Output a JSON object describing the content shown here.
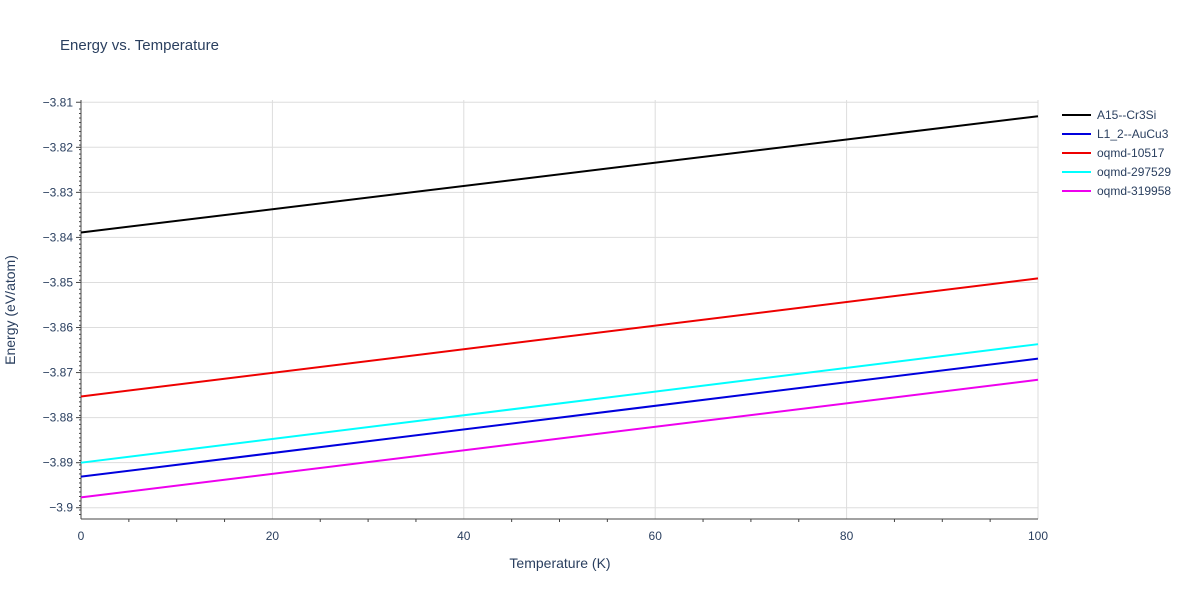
{
  "chart_data": {
    "type": "line",
    "title": "Energy vs. Temperature",
    "xlabel": "Temperature (K)",
    "ylabel": "Energy (eV/atom)",
    "xlim": [
      0,
      100
    ],
    "ylim": [
      -3.9025,
      -3.8095
    ],
    "x_ticks": [
      0,
      20,
      40,
      60,
      80,
      100
    ],
    "x_tick_labels": [
      "0",
      "20",
      "40",
      "60",
      "80",
      "100"
    ],
    "y_ticks": [
      -3.9,
      -3.89,
      -3.88,
      -3.87,
      -3.86,
      -3.85,
      -3.84,
      -3.83,
      -3.82,
      -3.81
    ],
    "y_tick_labels": [
      "−3.9",
      "−3.89",
      "−3.88",
      "−3.87",
      "−3.86",
      "−3.85",
      "−3.84",
      "−3.83",
      "−3.82",
      "−3.81"
    ],
    "grid": true,
    "legend_position": "top-right",
    "series": [
      {
        "name": "A15--Cr3Si",
        "color": "#000000",
        "x": [
          0,
          100
        ],
        "y": [
          -3.8389,
          -3.8131
        ]
      },
      {
        "name": "L1_2--AuCu3",
        "color": "#0000dd",
        "x": [
          0,
          100
        ],
        "y": [
          -3.8931,
          -3.8669
        ]
      },
      {
        "name": "oqmd-10517",
        "color": "#ee0000",
        "x": [
          0,
          100
        ],
        "y": [
          -3.8753,
          -3.8491
        ]
      },
      {
        "name": "oqmd-297529",
        "color": "#00ffff",
        "x": [
          0,
          100
        ],
        "y": [
          -3.89,
          -3.8637
        ]
      },
      {
        "name": "oqmd-319958",
        "color": "#ee00ee",
        "x": [
          0,
          100
        ],
        "y": [
          -3.8977,
          -3.8716
        ]
      }
    ]
  }
}
